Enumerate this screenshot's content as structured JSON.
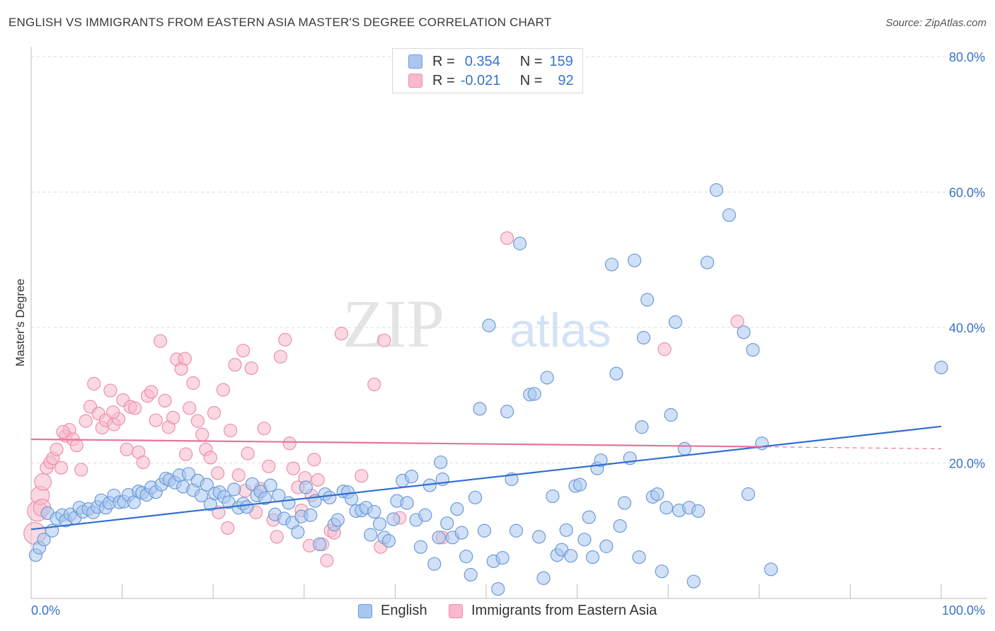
{
  "header": {
    "title": "ENGLISH VS IMMIGRANTS FROM EASTERN ASIA MASTER'S DEGREE CORRELATION CHART",
    "source": "Source: ZipAtlas.com"
  },
  "watermark": {
    "part1": "ZIP",
    "part2": "atlas"
  },
  "legend_top": {
    "rows": [
      {
        "r_label": "R =",
        "r_value": "0.354",
        "n_label": "N =",
        "n_value": "159"
      },
      {
        "r_label": "R =",
        "r_value": "-0.021",
        "n_label": "N =",
        "n_value": "92"
      }
    ]
  },
  "colors": {
    "english_fill": "#a9c7ee",
    "english_stroke": "#6d9ad8",
    "english_line": "#2f6fcf",
    "immig_fill": "#f7b9cb",
    "immig_stroke": "#ec8fab",
    "immig_line": "#e8739a",
    "axis_text": "#3a73c8",
    "grid": "#dcdcdc"
  },
  "chart_data": {
    "type": "scatter",
    "title": "ENGLISH VS IMMIGRANTS FROM EASTERN ASIA MASTER'S DEGREE CORRELATION CHART",
    "ylabel": "Master's Degree",
    "xlim": [
      0,
      100
    ],
    "ylim": [
      0,
      80
    ],
    "x_tick_labels": [
      "0.0%",
      "100.0%"
    ],
    "y_tick_values": [
      20,
      40,
      60,
      80
    ],
    "y_tick_labels": [
      "20.0%",
      "40.0%",
      "60.0%",
      "80.0%"
    ],
    "grid": "horizontal dashed",
    "legend_position": "top-center",
    "series": [
      {
        "name": "English",
        "r": 0.354,
        "n": 159,
        "trend": {
          "x": [
            0,
            100
          ],
          "y": [
            10.2,
            25.4
          ]
        },
        "points": [
          [
            0.5,
            6.4
          ],
          [
            0.9,
            7.5
          ],
          [
            1.4,
            8.7
          ],
          [
            1.8,
            12.6
          ],
          [
            2.3,
            10.0
          ],
          [
            2.8,
            11.8
          ],
          [
            3.4,
            12.3
          ],
          [
            3.8,
            11.5
          ],
          [
            4.3,
            12.4
          ],
          [
            4.8,
            11.9
          ],
          [
            5.3,
            13.4
          ],
          [
            5.7,
            12.8
          ],
          [
            6.3,
            13.2
          ],
          [
            6.8,
            12.7
          ],
          [
            7.3,
            13.5
          ],
          [
            7.7,
            14.5
          ],
          [
            8.2,
            13.4
          ],
          [
            8.6,
            14.1
          ],
          [
            9.1,
            15.2
          ],
          [
            9.7,
            14.2
          ],
          [
            10.2,
            14.3
          ],
          [
            10.7,
            15.3
          ],
          [
            11.3,
            14.2
          ],
          [
            11.8,
            15.8
          ],
          [
            12.2,
            15.6
          ],
          [
            12.7,
            15.3
          ],
          [
            13.2,
            16.4
          ],
          [
            13.7,
            15.7
          ],
          [
            14.3,
            16.8
          ],
          [
            14.8,
            17.7
          ],
          [
            15.2,
            17.5
          ],
          [
            15.8,
            17.1
          ],
          [
            16.3,
            18.2
          ],
          [
            16.7,
            16.5
          ],
          [
            17.3,
            18.4
          ],
          [
            17.8,
            16.0
          ],
          [
            18.3,
            17.4
          ],
          [
            18.7,
            15.2
          ],
          [
            19.3,
            16.8
          ],
          [
            19.7,
            13.9
          ],
          [
            20.2,
            15.5
          ],
          [
            20.7,
            15.7
          ],
          [
            21.2,
            15.0
          ],
          [
            21.7,
            14.2
          ],
          [
            22.3,
            16.1
          ],
          [
            22.8,
            13.4
          ],
          [
            23.3,
            14.0
          ],
          [
            23.7,
            13.5
          ],
          [
            24.3,
            16.9
          ],
          [
            24.8,
            15.2
          ],
          [
            25.2,
            15.8
          ],
          [
            25.7,
            14.8
          ],
          [
            26.3,
            16.7
          ],
          [
            26.8,
            12.4
          ],
          [
            27.2,
            15.2
          ],
          [
            27.8,
            11.8
          ],
          [
            28.3,
            14.1
          ],
          [
            28.7,
            11.2
          ],
          [
            29.3,
            9.8
          ],
          [
            29.7,
            12.1
          ],
          [
            30.2,
            16.4
          ],
          [
            30.7,
            12.3
          ],
          [
            31.2,
            14.4
          ],
          [
            31.7,
            8.0
          ],
          [
            32.3,
            15.4
          ],
          [
            32.8,
            14.9
          ],
          [
            33.3,
            10.9
          ],
          [
            33.7,
            11.6
          ],
          [
            34.3,
            15.8
          ],
          [
            34.8,
            15.7
          ],
          [
            35.2,
            14.7
          ],
          [
            35.7,
            12.9
          ],
          [
            36.3,
            13.0
          ],
          [
            36.8,
            13.4
          ],
          [
            37.3,
            9.4
          ],
          [
            37.7,
            12.8
          ],
          [
            38.3,
            11.0
          ],
          [
            38.8,
            9.0
          ],
          [
            39.3,
            8.5
          ],
          [
            39.8,
            11.7
          ],
          [
            40.2,
            14.4
          ],
          [
            40.8,
            17.4
          ],
          [
            41.3,
            14.1
          ],
          [
            41.8,
            18.0
          ],
          [
            42.3,
            11.6
          ],
          [
            42.8,
            7.6
          ],
          [
            43.3,
            12.3
          ],
          [
            43.8,
            16.7
          ],
          [
            44.3,
            5.1
          ],
          [
            44.8,
            9.0
          ],
          [
            45.2,
            17.6
          ],
          [
            45.7,
            11.1
          ],
          [
            46.3,
            9.0
          ],
          [
            46.8,
            13.2
          ],
          [
            47.3,
            9.7
          ],
          [
            47.8,
            6.2
          ],
          [
            48.3,
            3.5
          ],
          [
            48.8,
            14.9
          ],
          [
            49.3,
            28.0
          ],
          [
            49.8,
            10.0
          ],
          [
            50.3,
            40.3
          ],
          [
            50.8,
            5.5
          ],
          [
            51.3,
            1.4
          ],
          [
            51.8,
            6.0
          ],
          [
            52.3,
            27.6
          ],
          [
            52.8,
            17.6
          ],
          [
            53.3,
            10.0
          ],
          [
            53.7,
            52.4
          ],
          [
            54.8,
            30.1
          ],
          [
            55.3,
            30.2
          ],
          [
            55.8,
            9.1
          ],
          [
            56.3,
            3.0
          ],
          [
            56.7,
            32.6
          ],
          [
            57.3,
            15.1
          ],
          [
            57.8,
            6.4
          ],
          [
            58.3,
            7.2
          ],
          [
            58.8,
            10.1
          ],
          [
            59.3,
            6.3
          ],
          [
            59.8,
            16.6
          ],
          [
            60.3,
            16.8
          ],
          [
            60.8,
            8.7
          ],
          [
            61.3,
            12.0
          ],
          [
            61.7,
            6.1
          ],
          [
            62.2,
            19.2
          ],
          [
            62.6,
            20.4
          ],
          [
            63.2,
            7.7
          ],
          [
            63.8,
            49.3
          ],
          [
            64.3,
            33.2
          ],
          [
            64.7,
            10.7
          ],
          [
            65.2,
            14.1
          ],
          [
            65.8,
            20.7
          ],
          [
            66.3,
            49.9
          ],
          [
            66.8,
            6.1
          ],
          [
            67.3,
            38.5
          ],
          [
            67.7,
            44.1
          ],
          [
            68.3,
            15.0
          ],
          [
            68.8,
            15.4
          ],
          [
            69.3,
            4.0
          ],
          [
            69.8,
            13.4
          ],
          [
            70.3,
            27.1
          ],
          [
            70.8,
            40.8
          ],
          [
            71.2,
            13.0
          ],
          [
            71.8,
            22.1
          ],
          [
            72.3,
            13.4
          ],
          [
            72.8,
            2.5
          ],
          [
            73.3,
            12.9
          ],
          [
            74.3,
            49.6
          ],
          [
            75.3,
            60.3
          ],
          [
            76.7,
            56.6
          ],
          [
            78.3,
            39.3
          ],
          [
            78.8,
            15.4
          ],
          [
            79.3,
            36.7
          ],
          [
            80.3,
            22.9
          ],
          [
            81.3,
            4.3
          ],
          [
            100.0,
            34.1
          ],
          [
            67.1,
            25.3
          ],
          [
            45.0,
            20.1
          ]
        ]
      },
      {
        "name": "Immigrants from Eastern Asia",
        "r": -0.021,
        "n": 92,
        "trend": {
          "x": [
            0,
            80
          ],
          "y": [
            23.5,
            22.4
          ],
          "dashed_x": [
            80,
            100
          ],
          "dashed_y": [
            22.4,
            22.1
          ]
        },
        "points": [
          [
            0.4,
            9.6
          ],
          [
            0.7,
            12.9
          ],
          [
            1.0,
            15.2
          ],
          [
            1.3,
            17.2
          ],
          [
            1.7,
            19.3
          ],
          [
            2.1,
            20.1
          ],
          [
            2.4,
            20.7
          ],
          [
            2.8,
            22.0
          ],
          [
            3.3,
            19.3
          ],
          [
            3.8,
            24.0
          ],
          [
            4.2,
            24.9
          ],
          [
            4.6,
            23.5
          ],
          [
            5.0,
            22.6
          ],
          [
            5.5,
            19.0
          ],
          [
            6.0,
            26.2
          ],
          [
            6.5,
            28.3
          ],
          [
            6.9,
            31.7
          ],
          [
            7.4,
            27.3
          ],
          [
            7.8,
            25.2
          ],
          [
            8.2,
            26.3
          ],
          [
            8.7,
            30.7
          ],
          [
            9.1,
            25.7
          ],
          [
            9.6,
            26.5
          ],
          [
            10.1,
            29.3
          ],
          [
            10.5,
            22.0
          ],
          [
            10.9,
            28.3
          ],
          [
            11.4,
            28.1
          ],
          [
            11.8,
            21.6
          ],
          [
            12.3,
            20.1
          ],
          [
            12.8,
            29.9
          ],
          [
            13.2,
            30.5
          ],
          [
            13.7,
            26.3
          ],
          [
            14.2,
            38.0
          ],
          [
            14.7,
            29.2
          ],
          [
            15.1,
            25.3
          ],
          [
            15.6,
            26.7
          ],
          [
            16.0,
            35.3
          ],
          [
            16.5,
            33.9
          ],
          [
            16.9,
            35.4
          ],
          [
            17.4,
            28.1
          ],
          [
            17.8,
            31.8
          ],
          [
            18.3,
            26.2
          ],
          [
            18.8,
            24.2
          ],
          [
            19.2,
            22.0
          ],
          [
            19.7,
            20.8
          ],
          [
            20.1,
            27.4
          ],
          [
            20.6,
            12.7
          ],
          [
            21.1,
            30.8
          ],
          [
            21.6,
            10.4
          ],
          [
            21.9,
            24.8
          ],
          [
            22.4,
            34.5
          ],
          [
            22.8,
            18.2
          ],
          [
            23.3,
            36.6
          ],
          [
            23.8,
            21.4
          ],
          [
            24.2,
            34.0
          ],
          [
            24.7,
            12.7
          ],
          [
            25.2,
            16.2
          ],
          [
            25.6,
            25.1
          ],
          [
            26.1,
            19.5
          ],
          [
            26.6,
            11.6
          ],
          [
            27.0,
            9.1
          ],
          [
            27.4,
            35.7
          ],
          [
            27.9,
            38.2
          ],
          [
            28.4,
            22.9
          ],
          [
            28.8,
            19.2
          ],
          [
            29.3,
            16.4
          ],
          [
            29.7,
            13.0
          ],
          [
            30.1,
            17.8
          ],
          [
            30.6,
            7.8
          ],
          [
            31.1,
            20.5
          ],
          [
            31.5,
            17.5
          ],
          [
            32.0,
            8.0
          ],
          [
            32.5,
            5.6
          ],
          [
            32.9,
            10.0
          ],
          [
            33.3,
            9.7
          ],
          [
            34.1,
            39.1
          ],
          [
            36.3,
            18.1
          ],
          [
            37.7,
            31.6
          ],
          [
            38.4,
            7.6
          ],
          [
            38.8,
            38.1
          ],
          [
            40.5,
            11.9
          ],
          [
            45.2,
            9.0
          ],
          [
            52.3,
            53.2
          ],
          [
            69.6,
            36.8
          ],
          [
            77.6,
            40.9
          ],
          [
            1.2,
            13.4
          ],
          [
            3.5,
            24.6
          ],
          [
            9.0,
            27.5
          ],
          [
            17.0,
            21.3
          ],
          [
            20.5,
            18.5
          ],
          [
            23.5,
            15.9
          ],
          [
            30.8,
            15.2
          ]
        ]
      }
    ]
  },
  "bottom_legend": {
    "english_label": "English",
    "immig_label": "Immigrants from Eastern Asia"
  }
}
